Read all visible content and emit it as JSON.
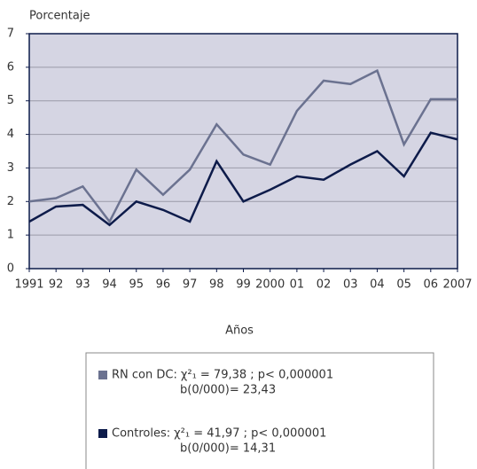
{
  "chart_data": {
    "type": "line",
    "y_label": "Porcentaje",
    "x_label": "Años",
    "categories": [
      "1991",
      "92",
      "93",
      "94",
      "95",
      "96",
      "97",
      "98",
      "99",
      "2000",
      "01",
      "02",
      "03",
      "04",
      "05",
      "06",
      "2007"
    ],
    "series": [
      {
        "name": "RN con DC:",
        "color": "#6b7290",
        "values": [
          2.0,
          2.1,
          2.45,
          1.4,
          2.95,
          2.2,
          2.95,
          4.3,
          3.4,
          3.1,
          4.7,
          5.6,
          5.5,
          5.9,
          3.7,
          5.05,
          5.05
        ],
        "annotation": [
          "χ²₁ = 79,38 ; p< 0,000001",
          "b(0/000)= 23,43"
        ]
      },
      {
        "name": "Controles:",
        "color": "#0d1b4a",
        "values": [
          1.4,
          1.85,
          1.9,
          1.3,
          2.0,
          1.75,
          1.4,
          3.2,
          2.0,
          2.35,
          2.75,
          2.65,
          3.1,
          3.5,
          2.75,
          4.05,
          3.85
        ],
        "annotation": [
          "χ²₁ = 41,97 ; p< 0,000001",
          "b(0/000)= 14,31"
        ]
      }
    ],
    "ylim": [
      0,
      7
    ],
    "yticks": [
      0,
      1,
      2,
      3,
      4,
      5,
      6,
      7
    ],
    "grid": true
  }
}
